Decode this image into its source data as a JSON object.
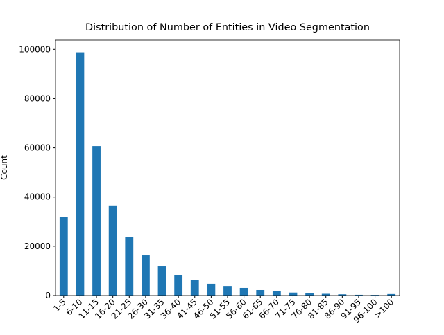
{
  "chart_data": {
    "type": "bar",
    "title": "Distribution of Number of Entities in Video Segmentation",
    "y_label": "Count",
    "categories": [
      "1-5",
      "6-10",
      "11-15",
      "16-20",
      "21-25",
      "26-30",
      "31-35",
      "36-40",
      "41-45",
      "46-50",
      "51-55",
      "56-60",
      "61-65",
      "66-70",
      "71-75",
      "76-80",
      "81-85",
      "86-90",
      "91-95",
      "96-100",
      ">100"
    ],
    "values": [
      31800,
      98800,
      60700,
      36600,
      23700,
      16300,
      11800,
      8400,
      6200,
      4800,
      3900,
      3100,
      2250,
      1700,
      1200,
      900,
      700,
      500,
      300,
      250,
      600
    ],
    "color": "#1f77b4",
    "ylim": [
      0,
      103740
    ],
    "yticks": [
      0,
      20000,
      40000,
      60000,
      80000,
      100000
    ],
    "grid": false
  }
}
